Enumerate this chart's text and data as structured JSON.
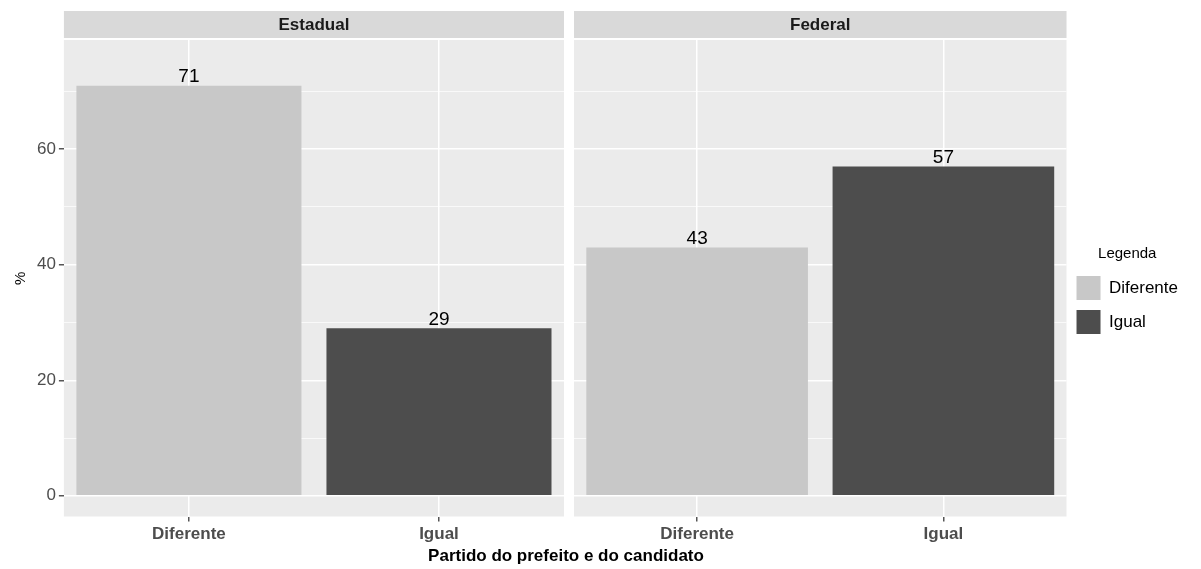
{
  "chart_data": [
    {
      "type": "bar",
      "title": "Estadual",
      "categories": [
        "Diferente",
        "Igual"
      ],
      "series": [
        {
          "color": "#c8c8c8",
          "values": [
            71,
            null
          ]
        },
        {
          "color": "#4d4d4d",
          "values": [
            null,
            29
          ]
        }
      ],
      "data_labels": true,
      "ylabel": "%",
      "xlabel": "Partido do prefeito e do candidato",
      "ylim": [
        -3.6,
        78.9
      ],
      "yticks": [
        0,
        {
          "value": 10,
          "label": null
        },
        20,
        {
          "value": 30,
          "label": null
        },
        40,
        {
          "value": 50,
          "label": null
        },
        60,
        {
          "value": 70,
          "label": null
        }
      ],
      "grid": true
    },
    {
      "type": "bar",
      "title": "Federal",
      "categories": [
        "Diferente",
        "Igual"
      ],
      "series": [
        {
          "name": "Diferente",
          "color": "#c8c8c8",
          "values": [
            43,
            null
          ]
        },
        {
          "name": "Igual",
          "color": "#4d4d4d",
          "values": [
            null,
            57
          ]
        }
      ],
      "data_labels": true,
      "ylim": [
        -3.6,
        78.9
      ],
      "yticks": [
        0,
        {
          "value": 10,
          "label": null
        },
        20,
        {
          "value": 30,
          "label": null
        },
        40,
        {
          "value": 50,
          "label": null
        },
        60,
        {
          "value": 70,
          "label": null
        }
      ],
      "grid": true,
      "tick_labels": "x",
      "legend": "right",
      "legend_title": "Legenda"
    }
  ]
}
